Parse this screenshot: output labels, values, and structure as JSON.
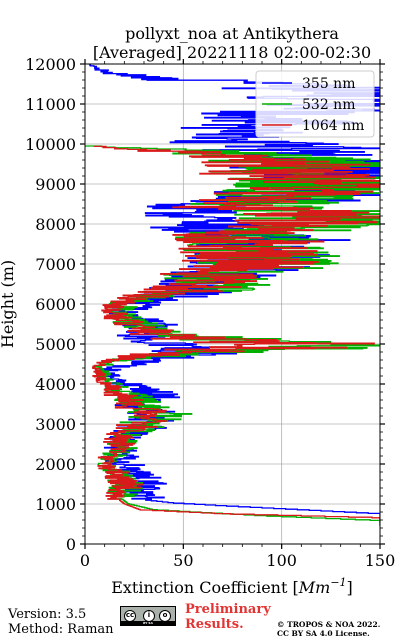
{
  "chart_data": {
    "type": "line",
    "title": "pollyxt_noa at Antikythera",
    "subtitle": "[Averaged] 20221118 02:00-02:30",
    "xlabel": "Extinction Coefficient",
    "xlabel_unit_base": "Mm",
    "xlabel_unit_exp": "−1",
    "ylabel": "Height (m)",
    "xlim": [
      0,
      150
    ],
    "ylim": [
      0,
      12000
    ],
    "x_ticks": [
      "0",
      "50",
      "100",
      "150"
    ],
    "y_ticks": [
      "0",
      "1000",
      "2000",
      "3000",
      "4000",
      "5000",
      "6000",
      "7000",
      "8000",
      "9000",
      "10000",
      "11000",
      "12000"
    ],
    "grid": true,
    "legend_position": "top-right",
    "series": [
      {
        "name": "355 nm",
        "color": "#0000ff",
        "profile": [
          [
            450,
            150
          ],
          [
            600,
            150
          ],
          [
            750,
            150
          ],
          [
            850,
            110
          ],
          [
            950,
            70
          ],
          [
            1020,
            45
          ],
          [
            1100,
            30
          ],
          [
            1200,
            26
          ],
          [
            1350,
            28
          ],
          [
            1500,
            30
          ],
          [
            1650,
            27
          ],
          [
            1800,
            25
          ],
          [
            1950,
            22
          ],
          [
            2050,
            19
          ],
          [
            2200,
            21
          ],
          [
            2350,
            18
          ],
          [
            2500,
            17
          ],
          [
            2650,
            20
          ],
          [
            2800,
            26
          ],
          [
            2950,
            30
          ],
          [
            3050,
            32
          ],
          [
            3200,
            36
          ],
          [
            3350,
            30
          ],
          [
            3500,
            27
          ],
          [
            3650,
            35
          ],
          [
            3800,
            31
          ],
          [
            3950,
            26
          ],
          [
            4050,
            19
          ],
          [
            4150,
            14
          ],
          [
            4300,
            10
          ],
          [
            4450,
            18
          ],
          [
            4600,
            33
          ],
          [
            4750,
            55
          ],
          [
            4850,
            50
          ],
          [
            4950,
            46
          ],
          [
            5050,
            38
          ],
          [
            5200,
            28
          ],
          [
            5350,
            35
          ],
          [
            5500,
            32
          ],
          [
            5650,
            24
          ],
          [
            5800,
            20
          ],
          [
            5950,
            25
          ],
          [
            6100,
            35
          ],
          [
            6250,
            50
          ],
          [
            6400,
            58
          ],
          [
            6550,
            62
          ],
          [
            6700,
            70
          ],
          [
            6850,
            85
          ],
          [
            6950,
            95
          ],
          [
            7050,
            90
          ],
          [
            7150,
            86
          ],
          [
            7300,
            90
          ],
          [
            7450,
            82
          ],
          [
            7600,
            96
          ],
          [
            7750,
            72
          ],
          [
            7900,
            60
          ],
          [
            8050,
            68
          ],
          [
            8200,
            48
          ],
          [
            8350,
            60
          ],
          [
            8500,
            55
          ],
          [
            8600,
            120
          ],
          [
            8750,
            100
          ],
          [
            8900,
            126
          ],
          [
            9050,
            150
          ],
          [
            9200,
            140
          ],
          [
            9350,
            118
          ],
          [
            9500,
            150
          ],
          [
            9650,
            100
          ],
          [
            9800,
            110
          ],
          [
            9950,
            100
          ],
          [
            10100,
            60
          ],
          [
            10250,
            80
          ],
          [
            10400,
            70
          ],
          [
            10550,
            110
          ],
          [
            10700,
            90
          ],
          [
            10850,
            115
          ],
          [
            11000,
            150
          ],
          [
            11150,
            132
          ],
          [
            11300,
            150
          ],
          [
            11450,
            100
          ],
          [
            11600,
            55
          ],
          [
            11750,
            15
          ],
          [
            11900,
            6
          ],
          [
            12000,
            2
          ]
        ]
      },
      {
        "name": "532 nm",
        "color": "#00b000",
        "profile": [
          [
            500,
            150
          ],
          [
            580,
            150
          ],
          [
            700,
            90
          ],
          [
            850,
            35
          ],
          [
            1000,
            22
          ],
          [
            1150,
            18
          ],
          [
            1300,
            20
          ],
          [
            1450,
            23
          ],
          [
            1600,
            20
          ],
          [
            1800,
            17
          ],
          [
            2000,
            11
          ],
          [
            2150,
            14
          ],
          [
            2300,
            17
          ],
          [
            2450,
            20
          ],
          [
            2600,
            18
          ],
          [
            2750,
            22
          ],
          [
            2900,
            28
          ],
          [
            3050,
            32
          ],
          [
            3200,
            40
          ],
          [
            3350,
            38
          ],
          [
            3500,
            30
          ],
          [
            3650,
            25
          ],
          [
            3800,
            18
          ],
          [
            3950,
            15
          ],
          [
            4100,
            10
          ],
          [
            4250,
            9
          ],
          [
            4400,
            8
          ],
          [
            4550,
            12
          ],
          [
            4700,
            40
          ],
          [
            4850,
            90
          ],
          [
            4950,
            133
          ],
          [
            5050,
            100
          ],
          [
            5150,
            60
          ],
          [
            5250,
            40
          ],
          [
            5400,
            32
          ],
          [
            5600,
            22
          ],
          [
            5800,
            18
          ],
          [
            6000,
            20
          ],
          [
            6150,
            30
          ],
          [
            6300,
            55
          ],
          [
            6450,
            70
          ],
          [
            6600,
            70
          ],
          [
            6750,
            63
          ],
          [
            6950,
            95
          ],
          [
            7100,
            90
          ],
          [
            7250,
            92
          ],
          [
            7400,
            85
          ],
          [
            7550,
            90
          ],
          [
            7700,
            80
          ],
          [
            7850,
            100
          ],
          [
            8000,
            150
          ],
          [
            8150,
            140
          ],
          [
            8300,
            110
          ],
          [
            8450,
            92
          ],
          [
            8600,
            95
          ],
          [
            8750,
            118
          ],
          [
            8900,
            128
          ],
          [
            9050,
            140
          ],
          [
            9200,
            115
          ],
          [
            9350,
            112
          ],
          [
            9500,
            120
          ],
          [
            9650,
            98
          ],
          [
            9800,
            60
          ],
          [
            9950,
            0
          ]
        ]
      },
      {
        "name": "1064 nm",
        "color": "#d91a1a",
        "profile": [
          [
            550,
            150
          ],
          [
            650,
            150
          ],
          [
            750,
            70
          ],
          [
            850,
            28
          ],
          [
            1000,
            20
          ],
          [
            1150,
            16
          ],
          [
            1300,
            18
          ],
          [
            1450,
            21
          ],
          [
            1600,
            18
          ],
          [
            1800,
            15
          ],
          [
            2000,
            10
          ],
          [
            2150,
            12
          ],
          [
            2300,
            15
          ],
          [
            2450,
            18
          ],
          [
            2600,
            16
          ],
          [
            2750,
            20
          ],
          [
            2900,
            25
          ],
          [
            3050,
            28
          ],
          [
            3200,
            32
          ],
          [
            3350,
            30
          ],
          [
            3500,
            24
          ],
          [
            3650,
            20
          ],
          [
            3800,
            15
          ],
          [
            3950,
            12
          ],
          [
            4100,
            8
          ],
          [
            4250,
            7
          ],
          [
            4400,
            6
          ],
          [
            4550,
            10
          ],
          [
            4700,
            30
          ],
          [
            4850,
            70
          ],
          [
            4950,
            120
          ],
          [
            5050,
            90
          ],
          [
            5150,
            50
          ],
          [
            5250,
            34
          ],
          [
            5400,
            28
          ],
          [
            5600,
            18
          ],
          [
            5800,
            14
          ],
          [
            6000,
            16
          ],
          [
            6150,
            26
          ],
          [
            6300,
            50
          ],
          [
            6450,
            62
          ],
          [
            6600,
            63
          ],
          [
            6750,
            60
          ],
          [
            6950,
            82
          ],
          [
            7100,
            86
          ],
          [
            7250,
            88
          ],
          [
            7400,
            80
          ],
          [
            7550,
            85
          ],
          [
            7700,
            70
          ],
          [
            7850,
            90
          ],
          [
            8000,
            140
          ],
          [
            8150,
            130
          ],
          [
            8300,
            98
          ],
          [
            8450,
            72
          ],
          [
            8600,
            80
          ],
          [
            8750,
            110
          ],
          [
            8900,
            125
          ],
          [
            9050,
            120
          ],
          [
            9200,
            105
          ],
          [
            9350,
            100
          ],
          [
            9500,
            110
          ],
          [
            9650,
            90
          ],
          [
            9800,
            50
          ],
          [
            9950,
            0
          ]
        ]
      }
    ]
  },
  "footer": {
    "version": "Version: 3.5",
    "method": "Method: Raman",
    "cc_badge_text": "BY SA",
    "preliminary_line1": "Preliminary",
    "preliminary_line2": "Results.",
    "copyright_line1": "© TROPOS & NOA 2022.",
    "copyright_line2": "CC BY SA 4.0 License."
  }
}
